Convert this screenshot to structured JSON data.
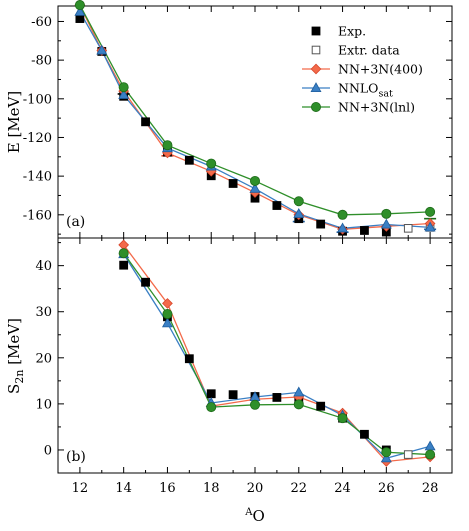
{
  "chart_data": [
    {
      "type": "line",
      "panel": "(a)",
      "ylabel": "E [MeV]",
      "xlabel": "",
      "xlim": [
        11,
        29
      ],
      "ylim": [
        -172,
        -52
      ],
      "x_ticks": [
        12,
        14,
        16,
        18,
        20,
        22,
        24,
        26,
        28
      ],
      "y_ticks": [
        -160,
        -140,
        -120,
        -100,
        -80,
        -60
      ],
      "y_tick_labels": [
        "-160",
        "-140",
        "-120",
        "-100",
        "-80",
        "-60"
      ],
      "legend_position": "top-right",
      "legend": [
        "Exp.",
        "Extr. data",
        "NN+3N(400)",
        "NNLOsat",
        "NN+3N(lnl)"
      ],
      "series": [
        {
          "name": "Exp.",
          "style": "filled-square",
          "color": "#000000",
          "x": [
            12,
            13,
            14,
            15,
            16,
            17,
            18,
            19,
            20,
            21,
            22,
            23,
            24,
            25,
            26
          ],
          "y": [
            -58.5,
            -75.5,
            -98.7,
            -111.9,
            -127.6,
            -131.8,
            -139.8,
            -143.8,
            -151.4,
            -155.2,
            -162.0,
            -164.8,
            -168.5,
            -168.1,
            -168.9
          ]
        },
        {
          "name": "Extr. data",
          "style": "open-square",
          "color": "#000000",
          "x": [
            27,
            28
          ],
          "y": [
            -167.0,
            -166.5
          ]
        },
        {
          "name": "NN+3N(400)",
          "style": "diamond",
          "color": "#f36a4a",
          "x": [
            12,
            13,
            14,
            16,
            18,
            20,
            22,
            24,
            26,
            28
          ],
          "y": [
            -51.5,
            -75.0,
            -96.0,
            -128.0,
            -137.5,
            -148.5,
            -160.0,
            -167.5,
            -166.0,
            -164.5
          ]
        },
        {
          "name": "NNLOsat",
          "style": "triangle",
          "color": "#3a7fc4",
          "x": [
            12,
            13,
            14,
            16,
            18,
            20,
            22,
            24,
            26,
            28
          ],
          "y": [
            -55.0,
            -75.0,
            -98.0,
            -125.5,
            -135.0,
            -146.5,
            -159.5,
            -167.0,
            -165.0,
            -166.5
          ]
        },
        {
          "name": "NN+3N(lnl)",
          "style": "circle",
          "color": "#2f8f2a",
          "x": [
            12,
            14,
            16,
            18,
            20,
            22,
            24,
            26,
            28
          ],
          "y": [
            -51.5,
            -94.0,
            -124.0,
            -133.5,
            -142.5,
            -153.0,
            -160.0,
            -159.5,
            -158.5
          ]
        }
      ]
    },
    {
      "type": "line",
      "panel": "(b)",
      "ylabel": "S2n [MeV]",
      "xlabel": "AO",
      "xlim": [
        11,
        29
      ],
      "ylim": [
        -5,
        46
      ],
      "x_ticks": [
        12,
        14,
        16,
        18,
        20,
        22,
        24,
        26,
        28
      ],
      "x_tick_labels": [
        "12",
        "14",
        "16",
        "18",
        "20",
        "22",
        "24",
        "26",
        "28"
      ],
      "y_ticks": [
        0,
        10,
        20,
        30,
        40
      ],
      "y_tick_labels": [
        "0",
        "10",
        "20",
        "30",
        "40"
      ],
      "series": [
        {
          "name": "Exp.",
          "style": "filled-square",
          "color": "#000000",
          "x": [
            14,
            15,
            16,
            17,
            18,
            19,
            20,
            21,
            22,
            23,
            24,
            25,
            26
          ],
          "y": [
            40.1,
            36.4,
            28.9,
            19.8,
            12.2,
            12.0,
            11.6,
            11.4,
            10.6,
            9.5,
            6.9,
            3.4,
            0.0
          ]
        },
        {
          "name": "Extr. data",
          "style": "open-square",
          "color": "#000000",
          "x": [
            27
          ],
          "y": [
            -1.0
          ]
        },
        {
          "name": "NN+3N(400)",
          "style": "diamond",
          "color": "#f36a4a",
          "x": [
            14,
            16,
            18,
            20,
            22,
            24,
            26,
            28
          ],
          "y": [
            44.5,
            31.8,
            9.5,
            11.0,
            11.5,
            8.0,
            -2.5,
            -1.5
          ]
        },
        {
          "name": "NNLOsat",
          "style": "triangle",
          "color": "#3a7fc4",
          "x": [
            14,
            16,
            18,
            20,
            22,
            24,
            26,
            28
          ],
          "y": [
            42.5,
            27.5,
            10.2,
            11.5,
            12.5,
            7.5,
            -1.8,
            0.8
          ]
        },
        {
          "name": "NN+3N(lnl)",
          "style": "circle",
          "color": "#2f8f2a",
          "x": [
            14,
            16,
            18,
            20,
            22,
            24,
            26,
            28
          ],
          "y": [
            42.7,
            29.5,
            9.3,
            9.8,
            9.9,
            6.9,
            -0.5,
            -1.0
          ]
        }
      ]
    }
  ]
}
